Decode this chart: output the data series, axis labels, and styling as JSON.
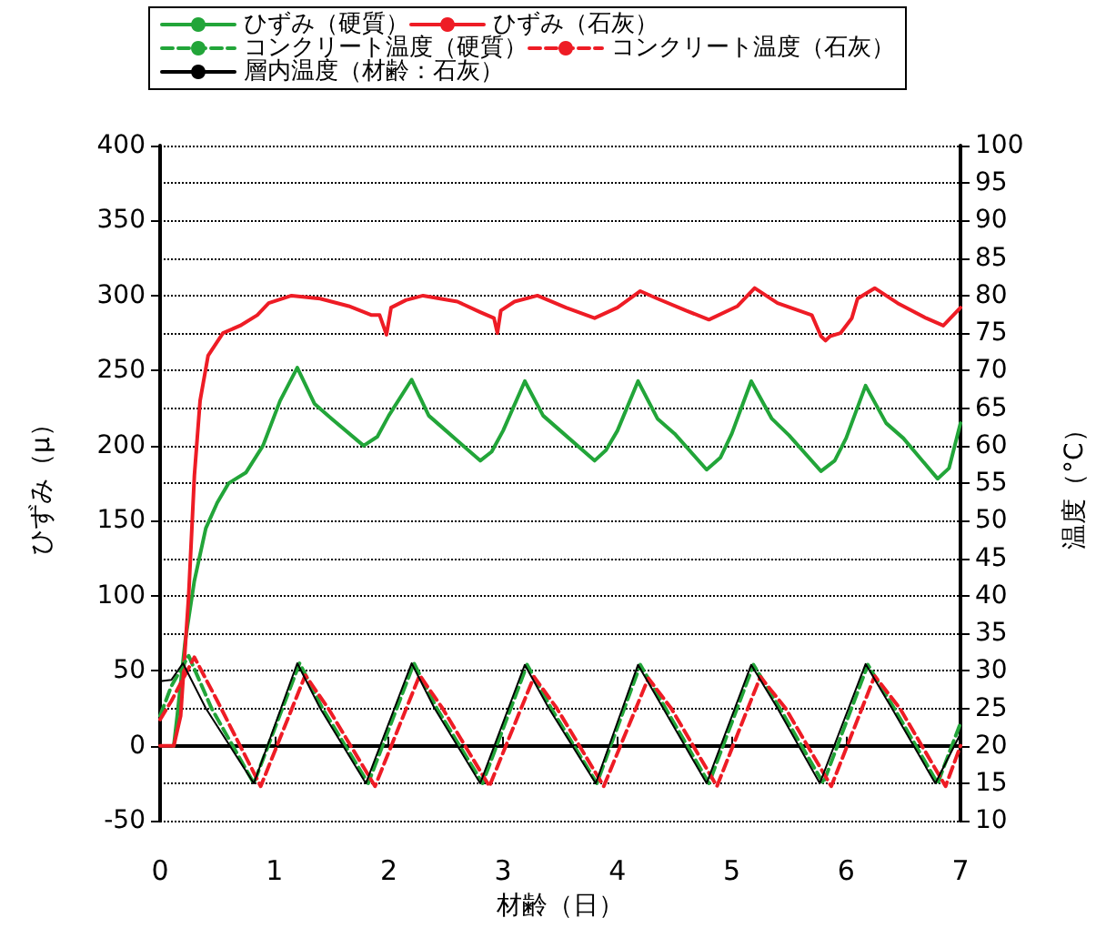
{
  "chart_data": {
    "type": "line",
    "xlabel": "材齢（日）",
    "ylabel": "ひずみ（μ）",
    "y2label": "温度（°C）",
    "xlim": [
      0,
      7
    ],
    "xticks": [
      0,
      1,
      2,
      3,
      4,
      5,
      6,
      7
    ],
    "ylim": [
      -50,
      400
    ],
    "yticks": [
      -50,
      0,
      50,
      100,
      150,
      200,
      250,
      300,
      350,
      400
    ],
    "y2lim": [
      10,
      100
    ],
    "y2ticks": [
      10,
      15,
      20,
      25,
      30,
      35,
      40,
      45,
      50,
      55,
      60,
      65,
      70,
      75,
      80,
      85,
      90,
      95,
      100
    ],
    "grid": "y",
    "legend": "top",
    "marker": "none",
    "series": [
      {
        "name": "ひずみ（硬質）",
        "color": "#22a539",
        "line_style": "solid",
        "x": [
          0.12,
          0.15,
          0.22,
          0.3,
          0.4,
          0.5,
          0.6,
          0.75,
          0.9,
          1.05,
          1.2,
          1.35,
          1.5,
          1.78,
          1.9,
          2.0,
          2.2,
          2.35,
          2.5,
          2.8,
          2.9,
          3.0,
          3.19,
          3.35,
          3.5,
          3.8,
          3.9,
          4.0,
          4.18,
          4.35,
          4.5,
          4.78,
          4.9,
          5.0,
          5.17,
          5.35,
          5.5,
          5.78,
          5.9,
          6.0,
          6.17,
          6.35,
          6.5,
          6.8,
          6.9,
          7.0
        ],
        "values": [
          0,
          20,
          70,
          110,
          145,
          162,
          175,
          182,
          200,
          230,
          252,
          228,
          218,
          200,
          206,
          220,
          244,
          220,
          210,
          190,
          196,
          210,
          243,
          220,
          210,
          190,
          197,
          210,
          243,
          218,
          208,
          184,
          192,
          208,
          243,
          218,
          207,
          183,
          190,
          205,
          240,
          215,
          205,
          178,
          185,
          215
        ]
      },
      {
        "name": "ひずみ（石灰）",
        "color": "#ee1c25",
        "line_style": "solid",
        "x": [
          0,
          0.12,
          0.18,
          0.25,
          0.3,
          0.35,
          0.42,
          0.55,
          0.7,
          0.85,
          0.95,
          1.15,
          1.4,
          1.65,
          1.85,
          1.92,
          1.98,
          2.02,
          2.15,
          2.3,
          2.6,
          2.8,
          2.92,
          2.95,
          2.98,
          3.1,
          3.3,
          3.55,
          3.8,
          4.0,
          4.2,
          4.35,
          4.6,
          4.8,
          5.05,
          5.2,
          5.4,
          5.7,
          5.78,
          5.82,
          5.86,
          5.95,
          6.05,
          6.1,
          6.25,
          6.45,
          6.7,
          6.85,
          7.0
        ],
        "values": [
          0,
          0,
          20,
          100,
          180,
          230,
          260,
          275,
          280,
          287,
          295,
          300,
          298,
          293,
          287,
          287,
          274,
          292,
          297,
          300,
          296,
          289,
          285,
          275,
          290,
          296,
          300,
          292,
          285,
          292,
          303,
          298,
          290,
          284,
          293,
          305,
          295,
          287,
          273,
          270,
          273,
          275,
          285,
          298,
          305,
          295,
          285,
          280,
          292
        ]
      },
      {
        "name": "コンクリート温度（硬質）",
        "color": "#22a539",
        "line_style": "dashed",
        "axis": "y2",
        "x": [
          0,
          0.1,
          0.25,
          0.45,
          0.82,
          1.22,
          1.42,
          1.82,
          2.22,
          2.42,
          2.82,
          3.21,
          3.42,
          3.82,
          4.2,
          4.42,
          4.8,
          5.19,
          5.42,
          5.8,
          6.19,
          6.42,
          6.8,
          7.0
        ],
        "values": [
          24,
          28,
          32,
          25,
          15,
          31,
          25,
          15,
          31,
          25,
          15,
          30.8,
          25,
          15,
          30.8,
          25,
          15,
          30.8,
          25,
          15,
          30.8,
          25,
          15,
          23
        ]
      },
      {
        "name": "コンクリート温度（石灰）",
        "color": "#ee1c25",
        "line_style": "dashed",
        "axis": "y2",
        "x": [
          0,
          0.1,
          0.3,
          0.5,
          0.88,
          1.27,
          1.47,
          1.88,
          2.27,
          2.47,
          2.88,
          3.27,
          3.47,
          3.88,
          4.27,
          4.47,
          4.87,
          5.25,
          5.47,
          5.87,
          6.25,
          6.47,
          6.87,
          7.0
        ],
        "values": [
          23.5,
          26,
          31.8,
          26,
          14.6,
          29.4,
          25,
          14.6,
          29.4,
          25,
          14.6,
          29.2,
          25,
          14.6,
          29,
          25,
          14.6,
          29.2,
          25,
          14.6,
          29.3,
          25,
          14.6,
          20
        ]
      },
      {
        "name": "層内温度（材齢：石灰）",
        "color": "#000000",
        "line_style": "solid",
        "axis": "y2",
        "x": [
          0,
          0.1,
          0.2,
          0.4,
          0.82,
          1.2,
          1.4,
          1.8,
          2.2,
          2.4,
          2.8,
          3.19,
          3.4,
          3.81,
          4.18,
          4.4,
          4.78,
          5.17,
          5.4,
          5.77,
          6.17,
          6.4,
          6.78,
          7.0
        ],
        "values": [
          28.6,
          28.8,
          31,
          25,
          15,
          31,
          25,
          15,
          31,
          25,
          15,
          30.8,
          25,
          15,
          30.8,
          25,
          15,
          30.8,
          25,
          15,
          30.9,
          25,
          15,
          21.6
        ]
      }
    ]
  }
}
